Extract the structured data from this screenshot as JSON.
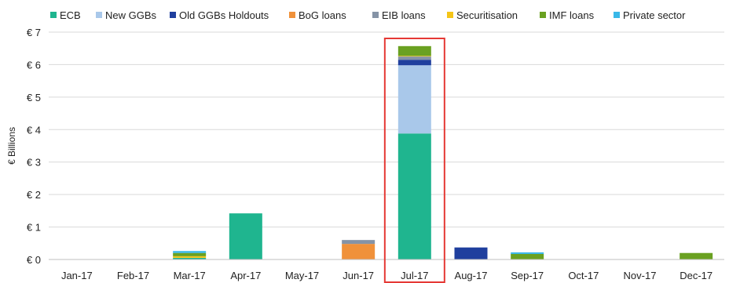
{
  "chart_data": {
    "type": "bar",
    "stacked": true,
    "title": "",
    "xlabel": "",
    "ylabel": "€ Billions",
    "ylim": [
      0,
      7
    ],
    "yticks": [
      0,
      1,
      2,
      3,
      4,
      5,
      6,
      7
    ],
    "ytick_labels": [
      "€ 0",
      "€ 1",
      "€ 2",
      "€ 3",
      "€ 4",
      "€ 5",
      "€ 6",
      "€ 7"
    ],
    "grid": true,
    "legend_position": "top",
    "categories": [
      "Jan-17",
      "Feb-17",
      "Mar-17",
      "Apr-17",
      "May-17",
      "Jun-17",
      "Jul-17",
      "Aug-17",
      "Sep-17",
      "Oct-17",
      "Nov-17",
      "Dec-17"
    ],
    "series": [
      {
        "name": "ECB",
        "color": "#1fb58f",
        "values": [
          0,
          0,
          0.05,
          1.42,
          0,
          0,
          3.88,
          0,
          0,
          0,
          0,
          0
        ]
      },
      {
        "name": "New GGBs",
        "color": "#a9c8ea",
        "values": [
          0,
          0,
          0,
          0,
          0,
          0,
          2.1,
          0,
          0,
          0,
          0,
          0
        ]
      },
      {
        "name": "Old GGBs Holdouts",
        "color": "#1f3f9e",
        "values": [
          0,
          0,
          0,
          0,
          0,
          0,
          0.17,
          0.37,
          0,
          0,
          0,
          0
        ]
      },
      {
        "name": "BoG loans",
        "color": "#f0913a",
        "values": [
          0,
          0,
          0,
          0,
          0,
          0.48,
          0,
          0,
          0,
          0,
          0,
          0
        ]
      },
      {
        "name": "EIB loans",
        "color": "#8593a6",
        "values": [
          0,
          0,
          0,
          0,
          0,
          0.12,
          0.1,
          0,
          0,
          0,
          0,
          0
        ]
      },
      {
        "name": "Securitisation",
        "color": "#f5c518",
        "values": [
          0,
          0,
          0.05,
          0,
          0,
          0,
          0.02,
          0,
          0,
          0,
          0,
          0
        ]
      },
      {
        "name": "IMF loans",
        "color": "#6aa121",
        "values": [
          0,
          0,
          0.1,
          0,
          0,
          0,
          0.3,
          0,
          0.17,
          0,
          0,
          0.2
        ]
      },
      {
        "name": "Private sector",
        "color": "#39b8e8",
        "values": [
          0,
          0,
          0.06,
          0,
          0,
          0,
          0,
          0,
          0.05,
          0,
          0,
          0
        ]
      }
    ],
    "highlight": {
      "category": "Jul-17",
      "color": "#e53935"
    }
  }
}
